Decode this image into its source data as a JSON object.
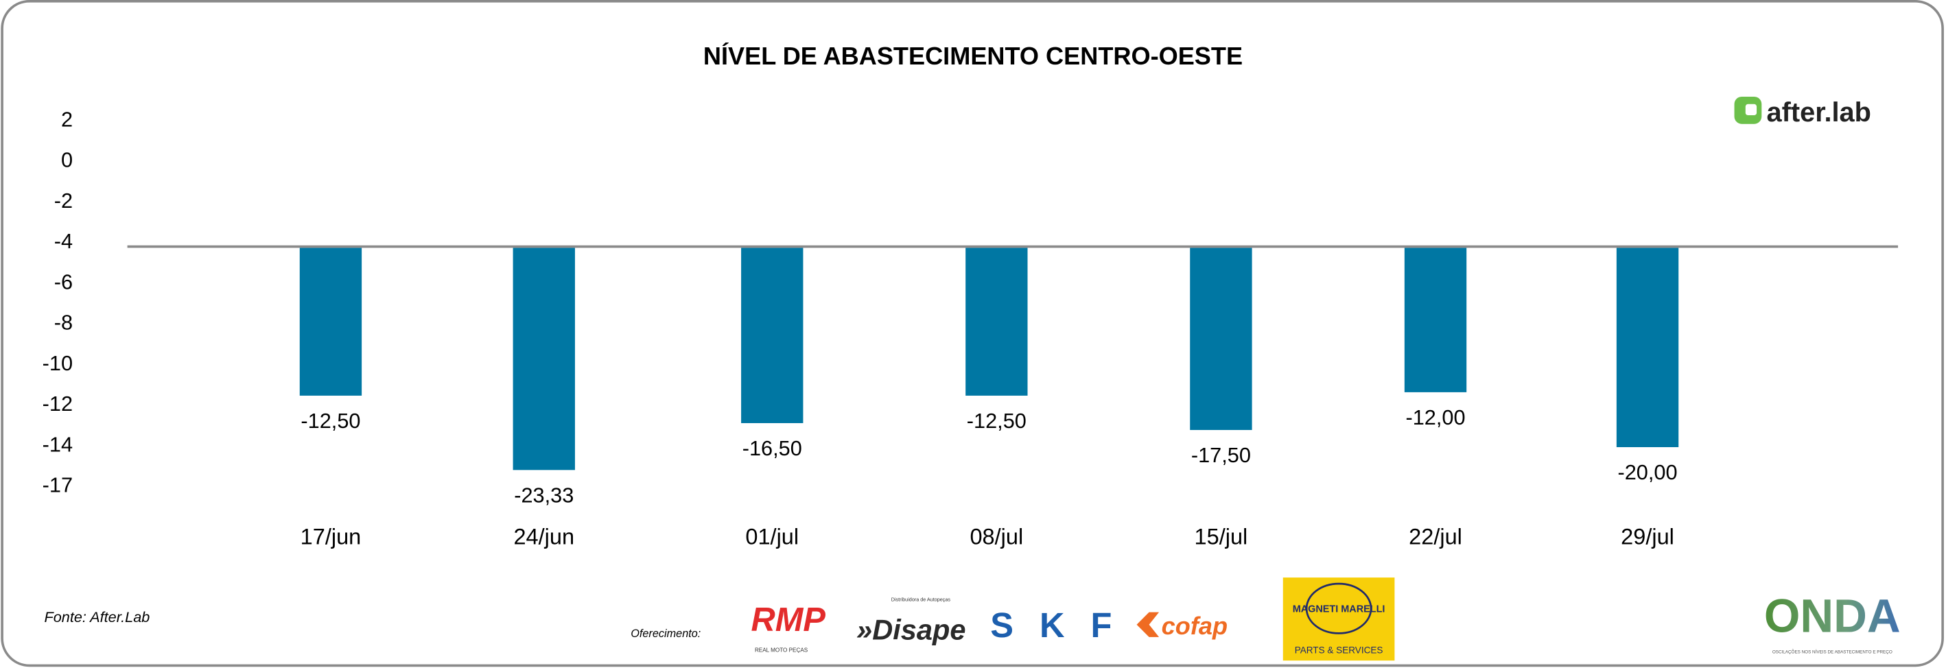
{
  "chart_data": {
    "type": "bar",
    "title": "NÍVEL DE ABASTECIMENTO CENTRO-OESTE",
    "categories": [
      "17/jun",
      "24/jun",
      "01/jul",
      "08/jul",
      "15/jul",
      "22/jul",
      "29/jul"
    ],
    "values": [
      -12.5,
      -23.33,
      -16.5,
      -12.5,
      -17.5,
      -12.0,
      -20.0
    ],
    "data_labels": [
      "-12,50",
      "-23,33",
      "-16,50",
      "-12,50",
      "-17,50",
      "-12,00",
      "-20,00"
    ],
    "y_ticks": [
      "2",
      "0",
      "-2",
      "-4",
      "-6",
      "-8",
      "-10",
      "-12",
      "-14",
      "-17"
    ],
    "xlabel": "",
    "ylabel": "",
    "grid": false,
    "bar_color": "#0077a3"
  },
  "footer": {
    "source": "Fonte: After.Lab",
    "sponsored_label": "Oferecimento:",
    "sponsors": {
      "rmp": "RMP",
      "rmp_sub": "REAL MOTO PEÇAS",
      "disape": "Disape",
      "disape_sub": "Distribuidora de Autopeças",
      "skf": "SKF",
      "cofap": "cofap",
      "magneti": "MAGNETI MARELLI",
      "magneti_sub": "PARTS & SERVICES"
    },
    "onda": "ONDA",
    "onda_sub": "OSCILAÇÕES NOS NÍVEIS DE ABASTECIMENTO E PREÇO"
  },
  "brand": {
    "name": "after.lab",
    "color": "#6cc04a"
  }
}
